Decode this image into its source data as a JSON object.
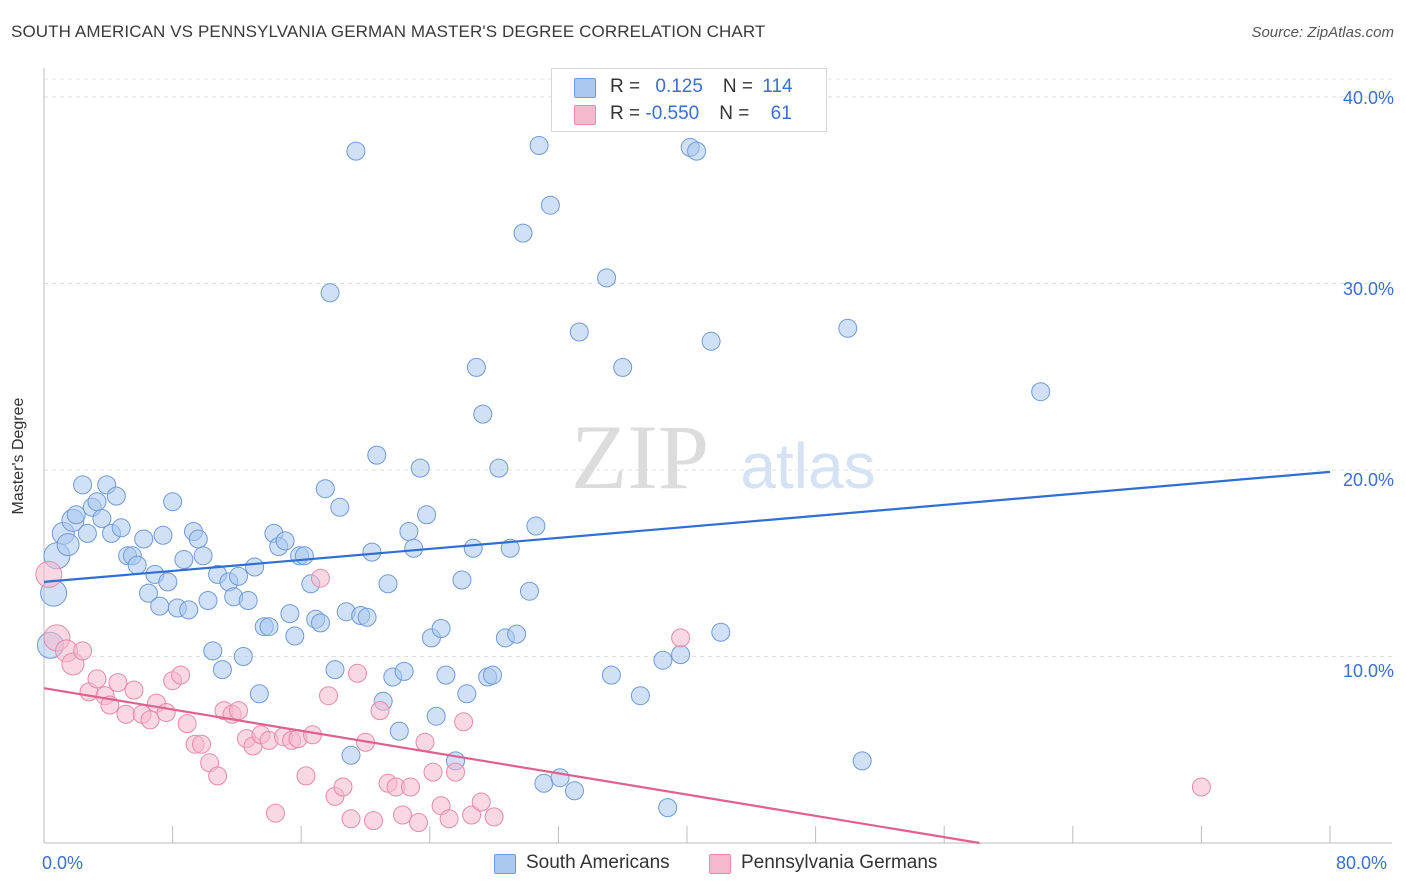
{
  "title": "SOUTH AMERICAN VS PENNSYLVANIA GERMAN MASTER'S DEGREE CORRELATION CHART",
  "source": "Source: ZipAtlas.com",
  "watermark": {
    "zip": "ZIP",
    "atlas": "atlas"
  },
  "legend": {
    "rows": [
      {
        "r_label": "R = ",
        "r_value": "0.125",
        "n_label": "N = ",
        "n_value": "114",
        "color": "#aac8f0"
      },
      {
        "r_label": "R = ",
        "r_value": "-0.550",
        "n_label": "N = ",
        "n_value": "61",
        "color": "#f5b8cc"
      }
    ]
  },
  "chart_data": {
    "type": "scatter",
    "xlabel": "",
    "ylabel": "Master's Degree",
    "xlim": [
      0,
      80
    ],
    "ylim": [
      0,
      40
    ],
    "x_tick_labels": [
      "0.0%",
      "80.0%"
    ],
    "y_tick_labels": [
      "40.0%",
      "30.0%",
      "20.0%",
      "10.0%"
    ],
    "y_ticks": [
      40,
      30,
      20,
      10
    ],
    "grid": true,
    "legend_position": "bottom-center",
    "series": [
      {
        "name": "South Americans",
        "color": "#aac8f0",
        "stroke": "#6f9ad8",
        "trend_color": "#2f6fd4",
        "trend": [
          [
            0,
            14.0
          ],
          [
            80,
            19.9
          ]
        ],
        "points": [
          [
            0.4,
            10.6
          ],
          [
            0.6,
            13.4
          ],
          [
            0.8,
            15.4
          ],
          [
            1.2,
            16.6
          ],
          [
            1.5,
            16.0
          ],
          [
            1.8,
            17.3
          ],
          [
            2.0,
            17.6
          ],
          [
            2.4,
            19.2
          ],
          [
            2.7,
            16.6
          ],
          [
            3.0,
            18.0
          ],
          [
            3.3,
            18.3
          ],
          [
            3.6,
            17.4
          ],
          [
            3.9,
            19.2
          ],
          [
            4.2,
            16.6
          ],
          [
            4.5,
            18.6
          ],
          [
            4.8,
            16.9
          ],
          [
            5.2,
            15.4
          ],
          [
            5.5,
            15.4
          ],
          [
            5.8,
            14.9
          ],
          [
            6.2,
            16.3
          ],
          [
            6.5,
            13.4
          ],
          [
            6.9,
            14.4
          ],
          [
            7.2,
            12.7
          ],
          [
            7.4,
            16.5
          ],
          [
            7.7,
            14.0
          ],
          [
            8.0,
            18.3
          ],
          [
            8.3,
            12.6
          ],
          [
            8.7,
            15.2
          ],
          [
            9.0,
            12.5
          ],
          [
            9.3,
            16.7
          ],
          [
            9.6,
            16.3
          ],
          [
            9.9,
            15.4
          ],
          [
            10.2,
            13.0
          ],
          [
            10.5,
            10.3
          ],
          [
            10.8,
            14.4
          ],
          [
            11.1,
            9.3
          ],
          [
            11.5,
            14.0
          ],
          [
            11.8,
            13.2
          ],
          [
            12.1,
            14.3
          ],
          [
            12.4,
            10.0
          ],
          [
            12.7,
            13.0
          ],
          [
            13.1,
            14.8
          ],
          [
            13.4,
            8.0
          ],
          [
            13.7,
            11.6
          ],
          [
            14.0,
            11.6
          ],
          [
            14.3,
            16.6
          ],
          [
            14.6,
            15.9
          ],
          [
            15.0,
            16.2
          ],
          [
            15.3,
            12.3
          ],
          [
            15.6,
            11.1
          ],
          [
            15.9,
            15.4
          ],
          [
            16.2,
            15.4
          ],
          [
            16.6,
            13.9
          ],
          [
            16.9,
            12.0
          ],
          [
            17.2,
            11.8
          ],
          [
            17.5,
            19.0
          ],
          [
            17.8,
            29.5
          ],
          [
            18.1,
            9.3
          ],
          [
            18.4,
            18.0
          ],
          [
            18.8,
            12.4
          ],
          [
            19.1,
            4.7
          ],
          [
            19.4,
            37.1
          ],
          [
            19.7,
            12.2
          ],
          [
            20.1,
            12.1
          ],
          [
            20.4,
            15.6
          ],
          [
            20.7,
            20.8
          ],
          [
            21.1,
            7.6
          ],
          [
            21.4,
            13.9
          ],
          [
            21.7,
            8.9
          ],
          [
            22.1,
            6.0
          ],
          [
            22.4,
            9.2
          ],
          [
            22.7,
            16.7
          ],
          [
            23.0,
            15.8
          ],
          [
            23.4,
            20.1
          ],
          [
            23.8,
            17.6
          ],
          [
            24.1,
            11.0
          ],
          [
            24.4,
            6.8
          ],
          [
            24.7,
            11.5
          ],
          [
            25.0,
            9.0
          ],
          [
            25.6,
            4.4
          ],
          [
            26.0,
            14.1
          ],
          [
            26.3,
            8.0
          ],
          [
            26.7,
            15.8
          ],
          [
            26.9,
            25.5
          ],
          [
            27.3,
            23.0
          ],
          [
            27.6,
            8.9
          ],
          [
            27.9,
            9.0
          ],
          [
            28.3,
            20.1
          ],
          [
            28.7,
            11.0
          ],
          [
            29.0,
            15.8
          ],
          [
            29.4,
            11.2
          ],
          [
            29.8,
            32.7
          ],
          [
            30.2,
            13.5
          ],
          [
            30.6,
            17.0
          ],
          [
            30.8,
            37.4
          ],
          [
            31.1,
            3.2
          ],
          [
            31.5,
            34.2
          ],
          [
            32.1,
            3.5
          ],
          [
            33.0,
            2.8
          ],
          [
            33.3,
            27.4
          ],
          [
            35.0,
            30.3
          ],
          [
            35.3,
            9.0
          ],
          [
            36.0,
            25.5
          ],
          [
            37.1,
            7.9
          ],
          [
            38.5,
            9.8
          ],
          [
            38.8,
            1.9
          ],
          [
            39.6,
            10.1
          ],
          [
            40.2,
            37.3
          ],
          [
            40.6,
            37.1
          ],
          [
            41.5,
            26.9
          ],
          [
            42.1,
            11.3
          ],
          [
            50.0,
            27.6
          ],
          [
            50.9,
            4.4
          ],
          [
            62.0,
            24.2
          ]
        ]
      },
      {
        "name": "Pennsylvania Germans",
        "color": "#f5b8cc",
        "stroke": "#e88aa8",
        "trend_color": "#e0608f",
        "trend": [
          [
            0,
            8.3
          ],
          [
            58.2,
            0.0
          ]
        ],
        "points": [
          [
            0.3,
            14.4
          ],
          [
            0.8,
            11.0
          ],
          [
            1.4,
            10.3
          ],
          [
            1.8,
            9.6
          ],
          [
            2.4,
            10.3
          ],
          [
            2.8,
            8.1
          ],
          [
            3.3,
            8.8
          ],
          [
            3.8,
            7.9
          ],
          [
            4.1,
            7.4
          ],
          [
            4.6,
            8.6
          ],
          [
            5.1,
            6.9
          ],
          [
            5.6,
            8.2
          ],
          [
            6.1,
            6.9
          ],
          [
            6.6,
            6.6
          ],
          [
            7.0,
            7.5
          ],
          [
            7.6,
            7.0
          ],
          [
            8.0,
            8.7
          ],
          [
            8.5,
            9.0
          ],
          [
            8.9,
            6.4
          ],
          [
            9.4,
            5.3
          ],
          [
            9.8,
            5.3
          ],
          [
            10.3,
            4.3
          ],
          [
            10.8,
            3.6
          ],
          [
            11.2,
            7.1
          ],
          [
            11.7,
            6.9
          ],
          [
            12.1,
            7.1
          ],
          [
            12.6,
            5.6
          ],
          [
            13.0,
            5.2
          ],
          [
            13.5,
            5.8
          ],
          [
            14.0,
            5.5
          ],
          [
            14.4,
            1.6
          ],
          [
            14.9,
            5.7
          ],
          [
            15.4,
            5.5
          ],
          [
            15.8,
            5.6
          ],
          [
            16.3,
            3.6
          ],
          [
            16.7,
            5.8
          ],
          [
            17.2,
            14.2
          ],
          [
            17.7,
            7.9
          ],
          [
            18.1,
            2.5
          ],
          [
            18.6,
            3.0
          ],
          [
            19.1,
            1.3
          ],
          [
            19.5,
            9.1
          ],
          [
            20.0,
            5.4
          ],
          [
            20.5,
            1.2
          ],
          [
            20.9,
            7.1
          ],
          [
            21.4,
            3.2
          ],
          [
            21.9,
            3.0
          ],
          [
            22.3,
            1.5
          ],
          [
            22.8,
            3.0
          ],
          [
            23.3,
            1.1
          ],
          [
            23.7,
            5.4
          ],
          [
            24.2,
            3.8
          ],
          [
            24.7,
            2.0
          ],
          [
            25.2,
            1.3
          ],
          [
            25.6,
            3.8
          ],
          [
            26.1,
            6.5
          ],
          [
            26.6,
            1.5
          ],
          [
            27.2,
            2.2
          ],
          [
            28.0,
            1.4
          ],
          [
            39.6,
            11.0
          ],
          [
            72.0,
            3.0
          ]
        ]
      }
    ]
  }
}
